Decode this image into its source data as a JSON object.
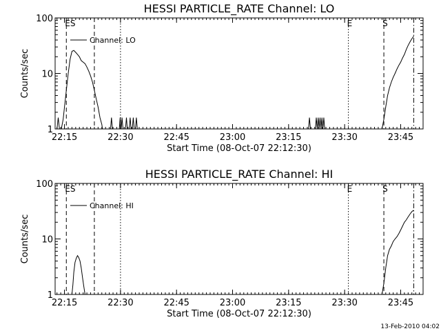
{
  "footer": {
    "timestamp": "13-Feb-2010 04:02"
  },
  "colors": {
    "background": "#ffffff",
    "foreground": "#000000"
  },
  "chart_data": [
    {
      "type": "line",
      "title": "HESSI PARTICLE_RATE Channel: LO",
      "xlabel": "Start Time (08-Oct-07 22:12:30)",
      "ylabel": "Counts/sec",
      "yscale": "log",
      "xlim": [
        "22:12:30",
        "23:51:00"
      ],
      "ylim": [
        1,
        100
      ],
      "xticks": [
        "22:15",
        "22:30",
        "22:45",
        "23:00",
        "23:15",
        "23:30",
        "23:45"
      ],
      "yticks": [
        "1",
        "10",
        "100"
      ],
      "legend": {
        "placement": "top-left",
        "entries": [
          "Channel: LO"
        ]
      },
      "markers": [
        {
          "time": "22:15:30",
          "style": "dashed",
          "label": "ES"
        },
        {
          "time": "22:23:00",
          "style": "dashed",
          "label": ""
        },
        {
          "time": "22:30:00",
          "style": "dotted",
          "label": ""
        },
        {
          "time": "23:31:00",
          "style": "dotted",
          "label": "E"
        },
        {
          "time": "23:40:30",
          "style": "dashed",
          "label": "S"
        },
        {
          "time": "23:48:30",
          "style": "dashdot",
          "label": ""
        }
      ],
      "series": [
        {
          "name": "Channel: LO",
          "points": [
            [
              "22:13:00",
              1.0
            ],
            [
              "22:13:20",
              1.6
            ],
            [
              "22:13:40",
              1.0
            ],
            [
              "22:14:10",
              1.0
            ],
            [
              "22:14:40",
              1.5
            ],
            [
              "22:15:00",
              2.5
            ],
            [
              "22:15:30",
              5.0
            ],
            [
              "22:16:00",
              10.0
            ],
            [
              "22:16:30",
              18.0
            ],
            [
              "22:17:00",
              25.0
            ],
            [
              "22:17:30",
              26.0
            ],
            [
              "22:18:00",
              24.0
            ],
            [
              "22:18:30",
              22.0
            ],
            [
              "22:19:00",
              20.0
            ],
            [
              "22:19:30",
              17.0
            ],
            [
              "22:20:00",
              16.0
            ],
            [
              "22:20:30",
              15.0
            ],
            [
              "22:21:00",
              13.0
            ],
            [
              "22:21:30",
              11.0
            ],
            [
              "22:22:00",
              9.0
            ],
            [
              "22:22:30",
              7.0
            ],
            [
              "22:23:00",
              5.0
            ],
            [
              "22:23:30",
              3.5
            ],
            [
              "22:24:00",
              2.5
            ],
            [
              "22:24:30",
              1.6
            ],
            [
              "22:25:00",
              1.2
            ],
            [
              "22:25:10",
              1.0
            ],
            [
              "22:27:20",
              1.0
            ],
            [
              "22:27:35",
              1.6
            ],
            [
              "22:27:50",
              1.0
            ],
            [
              "22:29:40",
              1.0
            ],
            [
              "22:29:55",
              1.6
            ],
            [
              "22:30:10",
              1.0
            ],
            [
              "22:30:25",
              1.6
            ],
            [
              "22:30:40",
              1.0
            ],
            [
              "22:31:20",
              1.0
            ],
            [
              "22:31:35",
              1.6
            ],
            [
              "22:31:50",
              1.0
            ],
            [
              "22:32:20",
              1.0
            ],
            [
              "22:32:35",
              1.6
            ],
            [
              "22:32:50",
              1.0
            ],
            [
              "22:33:10",
              1.0
            ],
            [
              "22:33:25",
              1.6
            ],
            [
              "22:33:40",
              1.0
            ],
            [
              "22:34:00",
              1.0
            ],
            [
              "22:34:15",
              1.6
            ],
            [
              "22:34:30",
              1.0
            ],
            [
              "23:20:20",
              1.0
            ],
            [
              "23:20:35",
              1.6
            ],
            [
              "23:20:50",
              1.0
            ],
            [
              "23:22:10",
              1.0
            ],
            [
              "23:22:25",
              1.6
            ],
            [
              "23:22:40",
              1.0
            ],
            [
              "23:22:55",
              1.6
            ],
            [
              "23:23:10",
              1.0
            ],
            [
              "23:23:25",
              1.6
            ],
            [
              "23:23:40",
              1.0
            ],
            [
              "23:23:55",
              1.6
            ],
            [
              "23:24:10",
              1.0
            ],
            [
              "23:24:25",
              1.6
            ],
            [
              "23:24:40",
              1.0
            ],
            [
              "23:40:00",
              1.0
            ],
            [
              "23:40:30",
              1.5
            ],
            [
              "23:41:00",
              2.5
            ],
            [
              "23:41:30",
              4.0
            ],
            [
              "23:42:00",
              5.5
            ],
            [
              "23:42:30",
              7.0
            ],
            [
              "23:43:00",
              8.5
            ],
            [
              "23:43:30",
              10.0
            ],
            [
              "23:44:00",
              12.0
            ],
            [
              "23:44:30",
              14.0
            ],
            [
              "23:45:00",
              16.0
            ],
            [
              "23:45:30",
              19.0
            ],
            [
              "23:46:00",
              22.0
            ],
            [
              "23:46:30",
              27.0
            ],
            [
              "23:47:00",
              32.0
            ],
            [
              "23:47:30",
              37.0
            ],
            [
              "23:48:00",
              42.0
            ],
            [
              "23:48:30",
              47.0
            ]
          ]
        }
      ]
    },
    {
      "type": "line",
      "title": "HESSI PARTICLE_RATE Channel: HI",
      "xlabel": "Start Time (08-Oct-07 22:12:30)",
      "ylabel": "Counts/sec",
      "yscale": "log",
      "xlim": [
        "22:12:30",
        "23:51:00"
      ],
      "ylim": [
        1,
        100
      ],
      "xticks": [
        "22:15",
        "22:30",
        "22:45",
        "23:00",
        "23:15",
        "23:30",
        "23:45"
      ],
      "yticks": [
        "1",
        "10",
        "100"
      ],
      "legend": {
        "placement": "top-left",
        "entries": [
          "Channel: HI"
        ]
      },
      "markers": [
        {
          "time": "22:15:30",
          "style": "dashed",
          "label": "ES"
        },
        {
          "time": "22:23:00",
          "style": "dashed",
          "label": ""
        },
        {
          "time": "22:30:00",
          "style": "dotted",
          "label": ""
        },
        {
          "time": "23:31:00",
          "style": "dotted",
          "label": "E"
        },
        {
          "time": "23:40:30",
          "style": "dashed",
          "label": "S"
        },
        {
          "time": "23:48:30",
          "style": "dashdot",
          "label": ""
        }
      ],
      "series": [
        {
          "name": "Channel: HI",
          "points": [
            [
              "22:17:00",
              1.0
            ],
            [
              "22:17:15",
              1.5
            ],
            [
              "22:17:30",
              2.5
            ],
            [
              "22:17:50",
              3.8
            ],
            [
              "22:18:10",
              4.5
            ],
            [
              "22:18:30",
              5.0
            ],
            [
              "22:18:50",
              4.6
            ],
            [
              "22:19:10",
              4.0
            ],
            [
              "22:19:30",
              3.0
            ],
            [
              "22:19:50",
              2.0
            ],
            [
              "22:20:10",
              1.4
            ],
            [
              "22:20:30",
              1.0
            ],
            [
              "23:40:00",
              1.0
            ],
            [
              "23:40:30",
              1.6
            ],
            [
              "23:41:00",
              3.0
            ],
            [
              "23:41:30",
              5.0
            ],
            [
              "23:42:00",
              6.5
            ],
            [
              "23:42:30",
              7.5
            ],
            [
              "23:43:00",
              9.0
            ],
            [
              "23:43:30",
              10.0
            ],
            [
              "23:44:00",
              11.0
            ],
            [
              "23:44:30",
              12.5
            ],
            [
              "23:45:00",
              14.5
            ],
            [
              "23:45:30",
              17.0
            ],
            [
              "23:46:00",
              20.0
            ],
            [
              "23:46:30",
              22.0
            ],
            [
              "23:47:00",
              25.0
            ],
            [
              "23:47:30",
              28.0
            ],
            [
              "23:48:00",
              31.0
            ],
            [
              "23:48:30",
              33.0
            ]
          ]
        }
      ]
    }
  ]
}
